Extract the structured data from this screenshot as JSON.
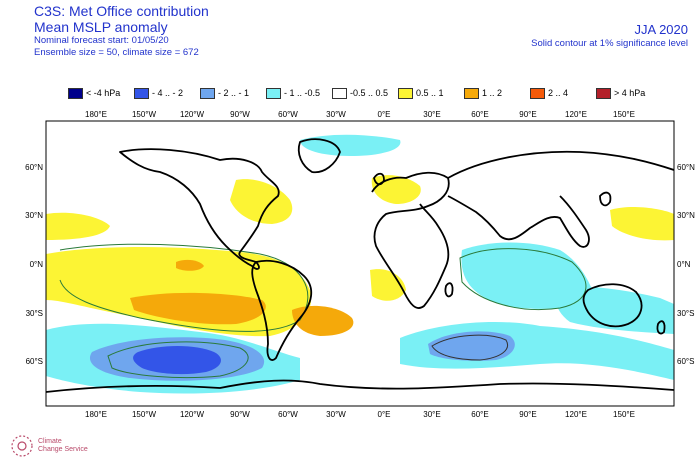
{
  "header": {
    "title_line1": "C3S: Met Office contribution",
    "title_line2": "Mean MSLP anomaly",
    "forecast_start": "Nominal forecast start: 01/05/20",
    "ensemble": "Ensemble size = 50, climate size = 672",
    "season": "JJA 2020",
    "contour_note": "Solid contour at 1% significance level"
  },
  "legend": [
    {
      "label": "< -4 hPa",
      "color": "#00008b"
    },
    {
      "label": "- 4 .. - 2",
      "color": "#3355e8"
    },
    {
      "label": "- 2 .. - 1",
      "color": "#6fa6ee"
    },
    {
      "label": "- 1 .. -0.5",
      "color": "#7af0f5"
    },
    {
      "label": "-0.5 .. 0.5",
      "color": "#ffffff"
    },
    {
      "label": "0.5 .. 1",
      "color": "#fcf434"
    },
    {
      "label": "1 .. 2",
      "color": "#f5a90a"
    },
    {
      "label": "2 .. 4",
      "color": "#f55a0a"
    },
    {
      "label": "> 4 hPa",
      "color": "#b3202a"
    }
  ],
  "axes": {
    "lon_labels": [
      "180°E",
      "150°W",
      "120°W",
      "90°W",
      "60°W",
      "30°W",
      "0°E",
      "30°E",
      "60°E",
      "90°E",
      "120°E",
      "150°E"
    ],
    "lat_labels": [
      "60°N",
      "30°N",
      "0°N",
      "30°S",
      "60°S"
    ]
  },
  "logo": {
    "line1": "Climate",
    "line2": "Change Service"
  }
}
